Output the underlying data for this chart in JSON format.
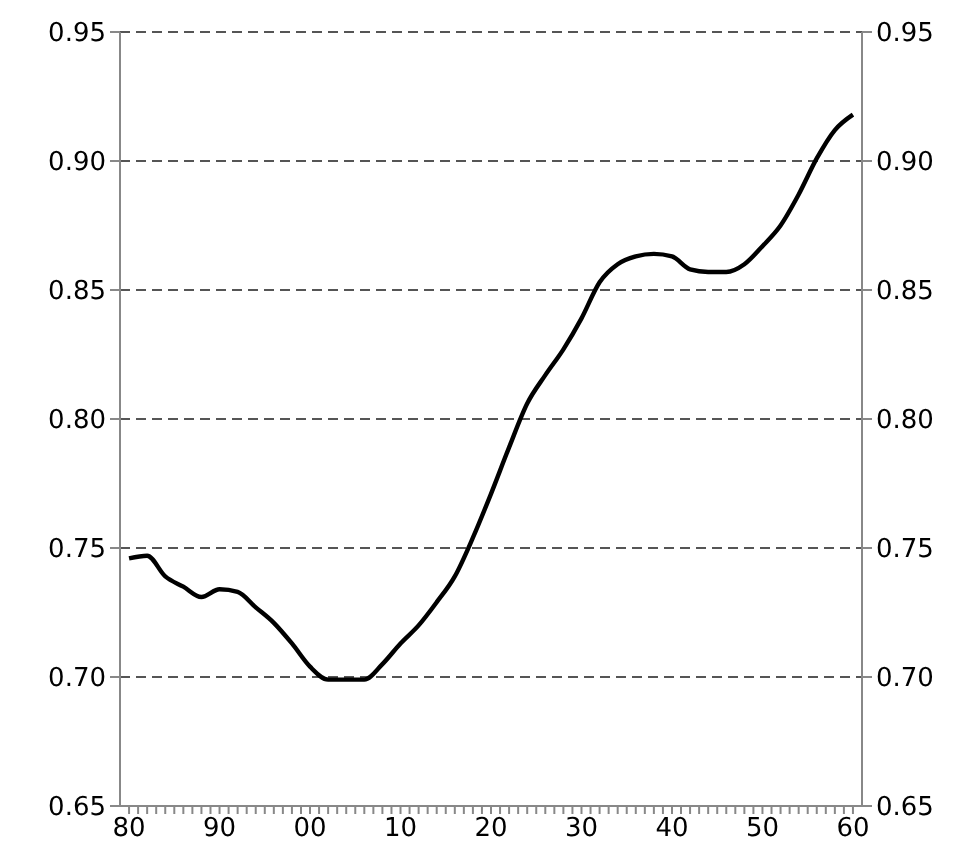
{
  "chart_data": {
    "type": "line",
    "x": [
      1980,
      1982,
      1984,
      1986,
      1988,
      1990,
      1992,
      1994,
      1996,
      1998,
      2000,
      2002,
      2004,
      2006,
      2008,
      2010,
      2012,
      2014,
      2016,
      2018,
      2020,
      2022,
      2024,
      2026,
      2028,
      2030,
      2032,
      2034,
      2036,
      2038,
      2040,
      2042,
      2044,
      2046,
      2048,
      2050,
      2052,
      2054,
      2056,
      2058,
      2060
    ],
    "series": [
      {
        "color": "#000000",
        "values": [
          0.746,
          0.747,
          0.739,
          0.735,
          0.731,
          0.734,
          0.733,
          0.727,
          0.721,
          0.713,
          0.704,
          0.699,
          0.699,
          0.699,
          0.705,
          0.713,
          0.72,
          0.729,
          0.739,
          0.754,
          0.771,
          0.789,
          0.806,
          0.817,
          0.827,
          0.839,
          0.853,
          0.86,
          0.863,
          0.864,
          0.863,
          0.858,
          0.857,
          0.857,
          0.86,
          0.867,
          0.875,
          0.887,
          0.901,
          0.912,
          0.918
        ]
      }
    ],
    "xlim": [
      1979,
      2061
    ],
    "xticks": [
      {
        "value": 1980,
        "label": "80"
      },
      {
        "value": 1981,
        "label": null
      },
      {
        "value": 1982,
        "label": null
      },
      {
        "value": 1983,
        "label": null
      },
      {
        "value": 1984,
        "label": null
      },
      {
        "value": 1985,
        "label": null
      },
      {
        "value": 1986,
        "label": null
      },
      {
        "value": 1987,
        "label": null
      },
      {
        "value": 1988,
        "label": null
      },
      {
        "value": 1989,
        "label": null
      },
      {
        "value": 1990,
        "label": "90"
      },
      {
        "value": 1991,
        "label": null
      },
      {
        "value": 1992,
        "label": null
      },
      {
        "value": 1993,
        "label": null
      },
      {
        "value": 1994,
        "label": null
      },
      {
        "value": 1995,
        "label": null
      },
      {
        "value": 1996,
        "label": null
      },
      {
        "value": 1997,
        "label": null
      },
      {
        "value": 1998,
        "label": null
      },
      {
        "value": 1999,
        "label": null
      },
      {
        "value": 2000,
        "label": "00"
      },
      {
        "value": 2001,
        "label": null
      },
      {
        "value": 2002,
        "label": null
      },
      {
        "value": 2003,
        "label": null
      },
      {
        "value": 2004,
        "label": null
      },
      {
        "value": 2005,
        "label": null
      },
      {
        "value": 2006,
        "label": null
      },
      {
        "value": 2007,
        "label": null
      },
      {
        "value": 2008,
        "label": null
      },
      {
        "value": 2009,
        "label": null
      },
      {
        "value": 2010,
        "label": "10"
      },
      {
        "value": 2011,
        "label": null
      },
      {
        "value": 2012,
        "label": null
      },
      {
        "value": 2013,
        "label": null
      },
      {
        "value": 2014,
        "label": null
      },
      {
        "value": 2015,
        "label": null
      },
      {
        "value": 2016,
        "label": null
      },
      {
        "value": 2017,
        "label": null
      },
      {
        "value": 2018,
        "label": null
      },
      {
        "value": 2019,
        "label": null
      },
      {
        "value": 2020,
        "label": "20"
      },
      {
        "value": 2021,
        "label": null
      },
      {
        "value": 2022,
        "label": null
      },
      {
        "value": 2023,
        "label": null
      },
      {
        "value": 2024,
        "label": null
      },
      {
        "value": 2025,
        "label": null
      },
      {
        "value": 2026,
        "label": null
      },
      {
        "value": 2027,
        "label": null
      },
      {
        "value": 2028,
        "label": null
      },
      {
        "value": 2029,
        "label": null
      },
      {
        "value": 2030,
        "label": "30"
      },
      {
        "value": 2031,
        "label": null
      },
      {
        "value": 2032,
        "label": null
      },
      {
        "value": 2033,
        "label": null
      },
      {
        "value": 2034,
        "label": null
      },
      {
        "value": 2035,
        "label": null
      },
      {
        "value": 2036,
        "label": null
      },
      {
        "value": 2037,
        "label": null
      },
      {
        "value": 2038,
        "label": null
      },
      {
        "value": 2039,
        "label": null
      },
      {
        "value": 2040,
        "label": "40"
      },
      {
        "value": 2041,
        "label": null
      },
      {
        "value": 2042,
        "label": null
      },
      {
        "value": 2043,
        "label": null
      },
      {
        "value": 2044,
        "label": null
      },
      {
        "value": 2045,
        "label": null
      },
      {
        "value": 2046,
        "label": null
      },
      {
        "value": 2047,
        "label": null
      },
      {
        "value": 2048,
        "label": null
      },
      {
        "value": 2049,
        "label": null
      },
      {
        "value": 2050,
        "label": "50"
      },
      {
        "value": 2051,
        "label": null
      },
      {
        "value": 2052,
        "label": null
      },
      {
        "value": 2053,
        "label": null
      },
      {
        "value": 2054,
        "label": null
      },
      {
        "value": 2055,
        "label": null
      },
      {
        "value": 2056,
        "label": null
      },
      {
        "value": 2057,
        "label": null
      },
      {
        "value": 2058,
        "label": null
      },
      {
        "value": 2059,
        "label": null
      },
      {
        "value": 2060,
        "label": "60"
      }
    ],
    "ylim": [
      0.65,
      0.95
    ],
    "yticks": [
      {
        "value": 0.65,
        "label": "0.65"
      },
      {
        "value": 0.7,
        "label": "0.70"
      },
      {
        "value": 0.75,
        "label": "0.75"
      },
      {
        "value": 0.8,
        "label": "0.80"
      },
      {
        "value": 0.85,
        "label": "0.85"
      },
      {
        "value": 0.9,
        "label": "0.90"
      },
      {
        "value": 0.95,
        "label": "0.95"
      }
    ],
    "y2lim": [
      0.65,
      0.95
    ],
    "y2ticks": [
      {
        "value": 0.65,
        "label": "0.65"
      },
      {
        "value": 0.7,
        "label": "0.70"
      },
      {
        "value": 0.75,
        "label": "0.75"
      },
      {
        "value": 0.8,
        "label": "0.80"
      },
      {
        "value": 0.85,
        "label": "0.85"
      },
      {
        "value": 0.9,
        "label": "0.90"
      },
      {
        "value": 0.95,
        "label": "0.95"
      }
    ],
    "grid": "y",
    "marker": "none",
    "line_style": "solid"
  }
}
